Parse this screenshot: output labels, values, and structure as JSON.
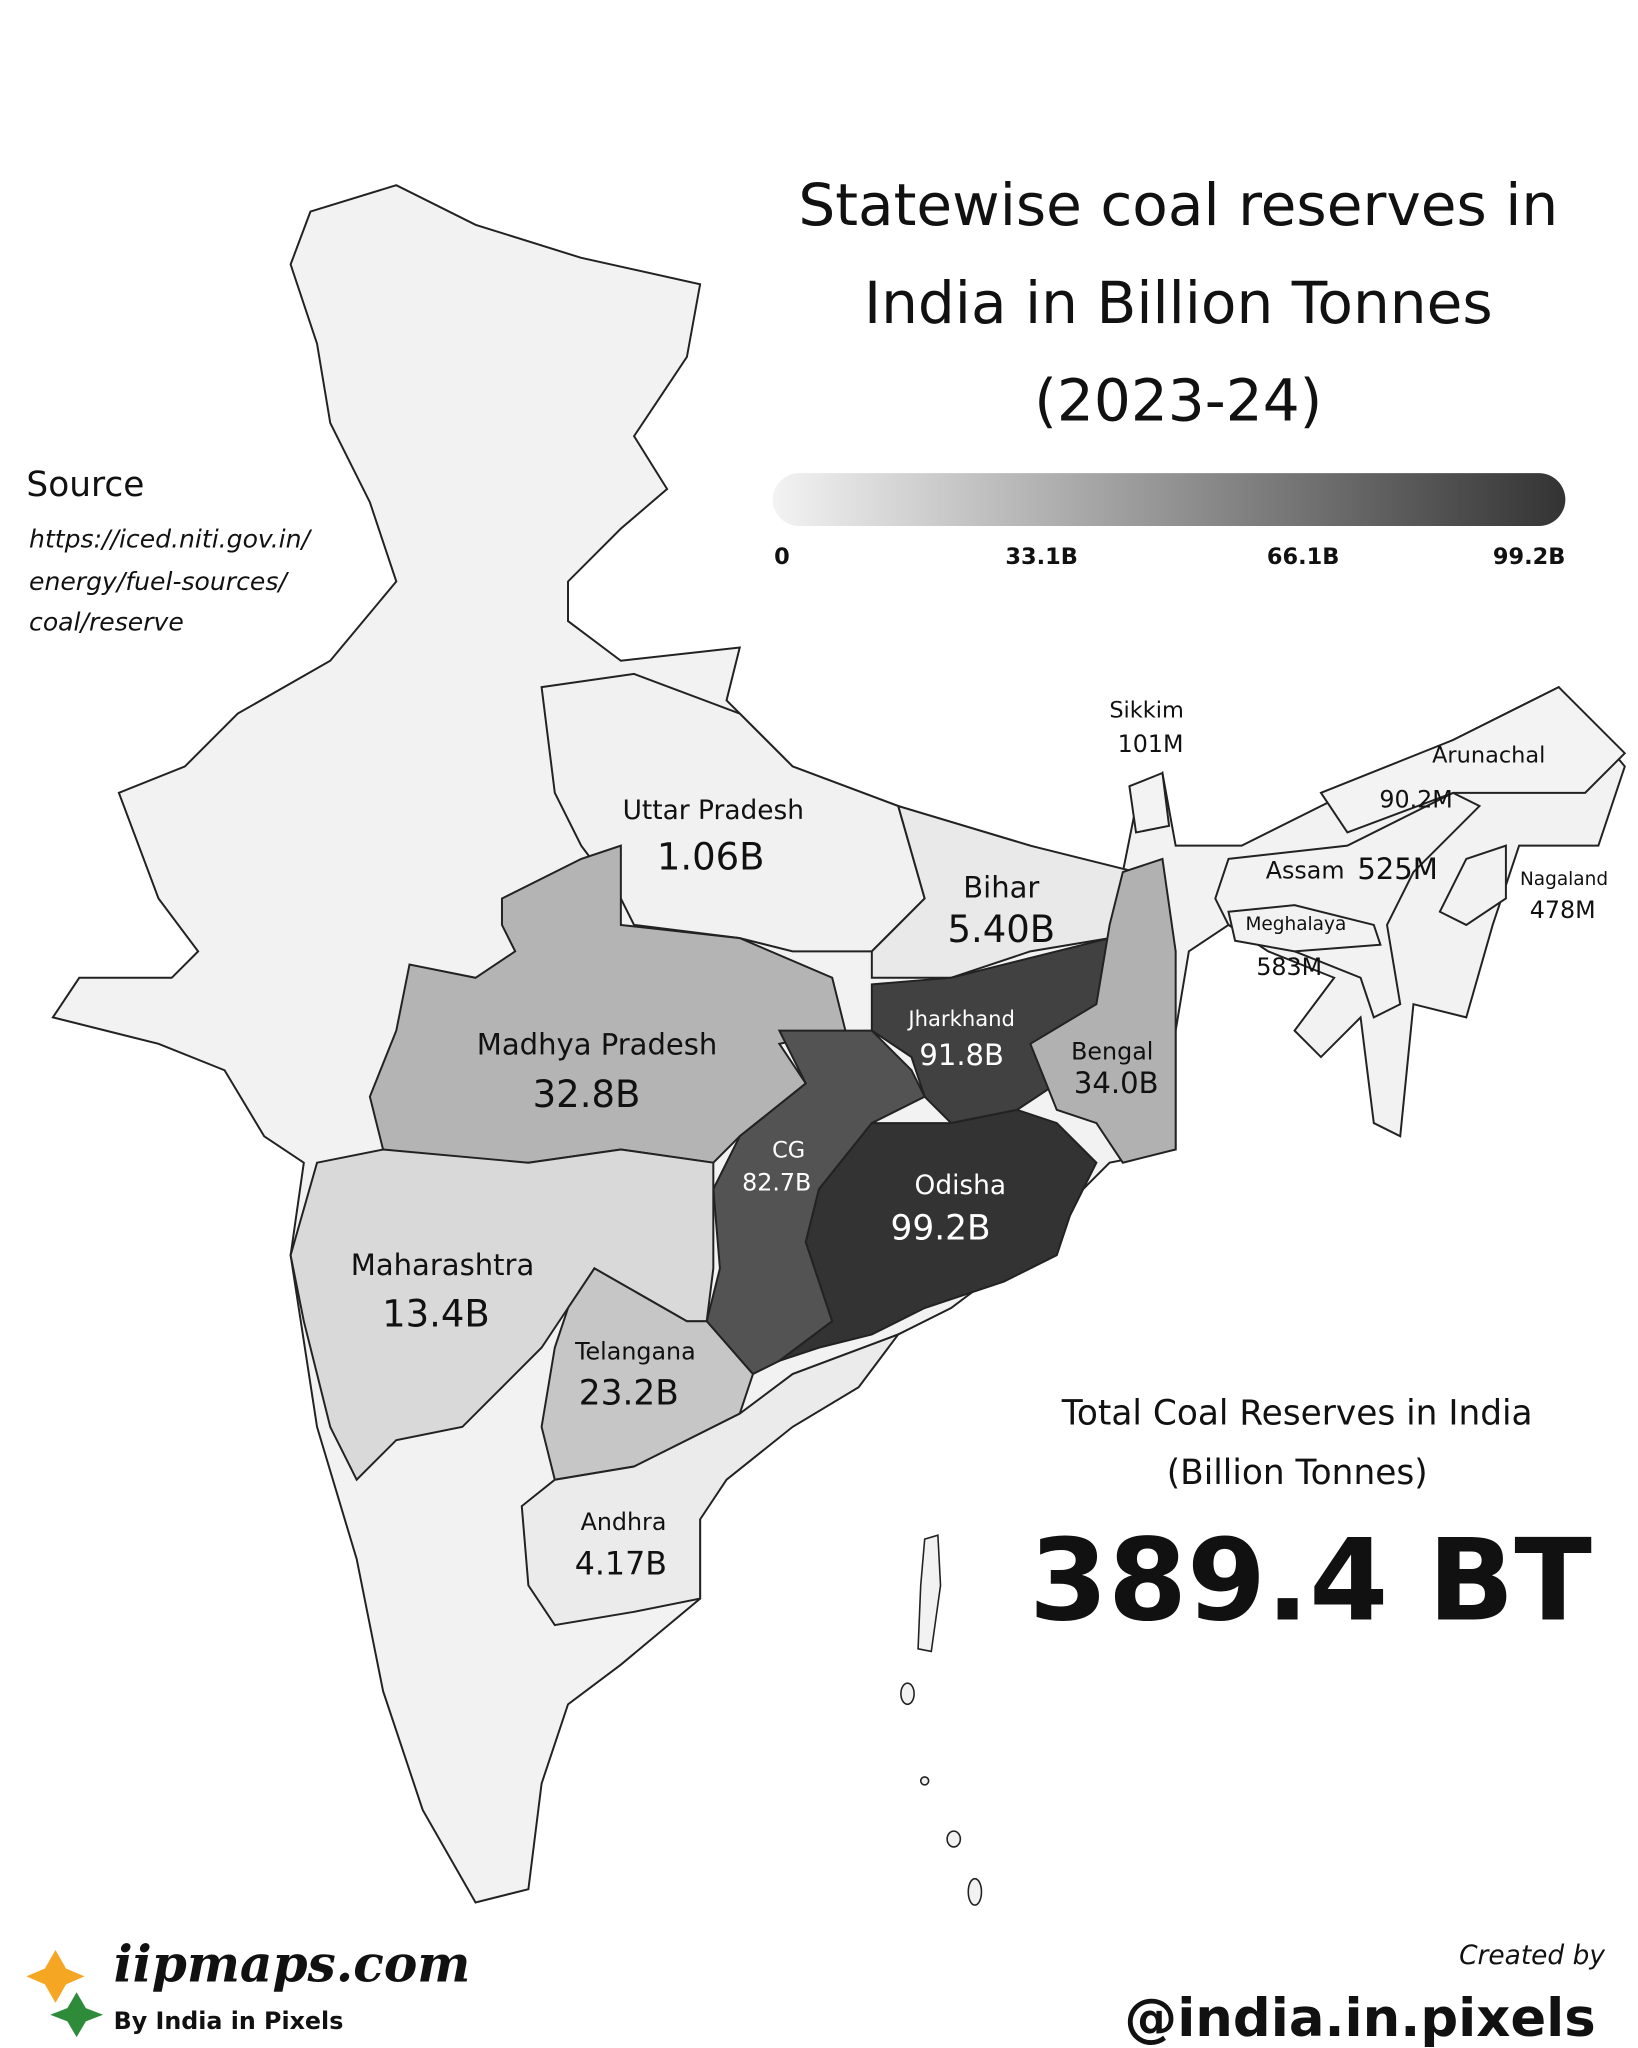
{
  "title": [
    "Statewise coal reserves in",
    "India in Billion Tonnes",
    "(2023-24)"
  ],
  "source": {
    "heading": "Source",
    "lines": [
      "https://iced.niti.gov.in/",
      "energy/fuel-sources/",
      "coal/reserve"
    ]
  },
  "legend": {
    "range": [
      0,
      99.2
    ],
    "colors": [
      "#f3f3f3",
      "#333333"
    ],
    "ticks": [
      {
        "value": 0,
        "label": "0"
      },
      {
        "value": 33.1,
        "label": "33.1B"
      },
      {
        "value": 66.1,
        "label": "66.1B"
      },
      {
        "value": 99.2,
        "label": "99.2B"
      }
    ]
  },
  "states": [
    {
      "name": "Uttar Pradesh",
      "value": 1.06,
      "label": "1.06B"
    },
    {
      "name": "Madhya Pradesh",
      "value": 32.8,
      "label": "32.8B"
    },
    {
      "name": "Bihar",
      "value": 5.4,
      "label": "5.40B"
    },
    {
      "name": "Jharkhand",
      "value": 91.8,
      "label": "91.8B"
    },
    {
      "name": "Bengal",
      "value": 34.0,
      "label": "34.0B"
    },
    {
      "name": "CG",
      "value": 82.7,
      "label": "82.7B"
    },
    {
      "name": "Odisha",
      "value": 99.2,
      "label": "99.2B"
    },
    {
      "name": "Maharashtra",
      "value": 13.4,
      "label": "13.4B"
    },
    {
      "name": "Telangana",
      "value": 23.2,
      "label": "23.2B"
    },
    {
      "name": "Andhra",
      "value": 4.17,
      "label": "4.17B"
    },
    {
      "name": "Assam",
      "value": 0.525,
      "label": "525M"
    },
    {
      "name": "Meghalaya",
      "value": 0.583,
      "label": "583M"
    },
    {
      "name": "Nagaland",
      "value": 0.478,
      "label": "478M"
    },
    {
      "name": "Arunachal",
      "value": 0.0902,
      "label": "90.2M"
    },
    {
      "name": "Sikkim",
      "value": 0.101,
      "label": "101M"
    }
  ],
  "total": {
    "heading": [
      "Total Coal Reserves in India",
      "(Billion Tonnes)"
    ],
    "value": "389.4 BT"
  },
  "branding": {
    "site": "iipmaps.com",
    "byline": "By India in Pixels",
    "created_by": "Created by",
    "handle": "@india.in.pixels"
  }
}
